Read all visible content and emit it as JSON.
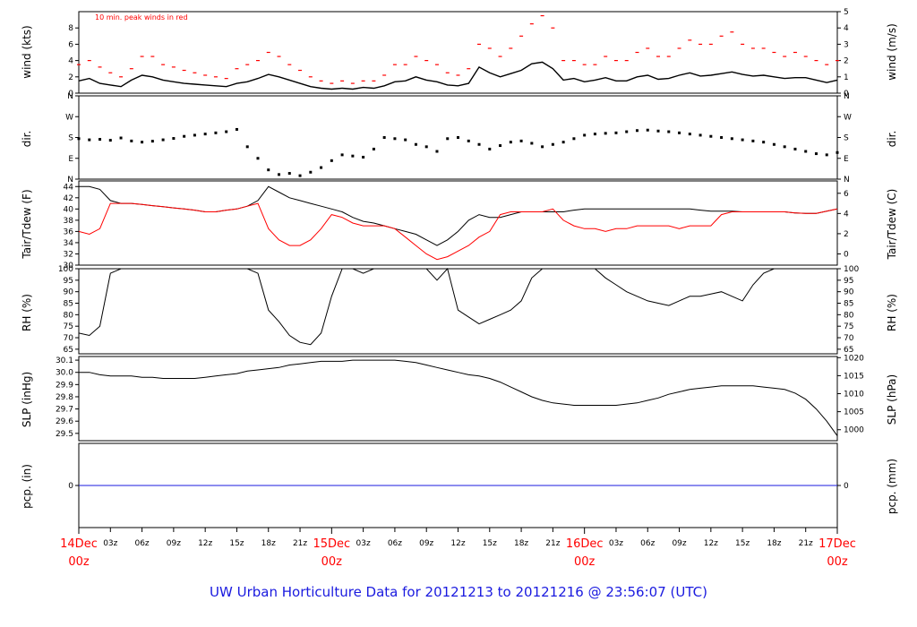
{
  "title": "UW Urban Horticulture Data for 20121213  to  20121216 @ 23:56:07  (UTC)",
  "note": "10 min. peak winds in red",
  "colors": {
    "series": "#000000",
    "peak": "#ff0000",
    "dewpoint": "#ff0000",
    "precip": "#1a1adf",
    "title": "#1a1adf",
    "day_labels": "#ff0000"
  },
  "time_axis": {
    "range_hours": [
      0,
      72
    ],
    "hour_ticks": [
      "03z",
      "06z",
      "09z",
      "12z",
      "15z",
      "18z",
      "21z",
      "03z",
      "06z",
      "09z",
      "12z",
      "15z",
      "18z",
      "21z",
      "03z",
      "06z",
      "09z",
      "12z",
      "15z",
      "18z",
      "21z"
    ],
    "day_labels": [
      {
        "date": "14Dec",
        "time": "00z"
      },
      {
        "date": "15Dec",
        "time": "00z"
      },
      {
        "date": "16Dec",
        "time": "00z"
      },
      {
        "date": "17Dec",
        "time": "00z"
      }
    ]
  },
  "chart_data": [
    {
      "type": "line",
      "panel": "wind",
      "ylabel": "wind (kts)",
      "ylabel_right": "wind (m/s)",
      "ylim": [
        0,
        10
      ],
      "yticks": [
        "0",
        "2",
        "4",
        "6",
        "8"
      ],
      "yticks_right": [
        "0",
        "1",
        "2",
        "3",
        "4",
        "5"
      ],
      "x": [
        0,
        1,
        2,
        3,
        4,
        5,
        6,
        7,
        8,
        9,
        10,
        11,
        12,
        13,
        14,
        15,
        16,
        17,
        18,
        19,
        20,
        21,
        22,
        23,
        24,
        25,
        26,
        27,
        28,
        29,
        30,
        31,
        32,
        33,
        34,
        35,
        36,
        37,
        38,
        39,
        40,
        41,
        42,
        43,
        44,
        45,
        46,
        47,
        48,
        49,
        50,
        51,
        52,
        53,
        54,
        55,
        56,
        57,
        58,
        59,
        60,
        61,
        62,
        63,
        64,
        65,
        66,
        67,
        68,
        69,
        70,
        71,
        72
      ],
      "series": [
        {
          "values": [
            1.5,
            1.8,
            1.2,
            1.0,
            0.8,
            1.6,
            2.2,
            2.0,
            1.6,
            1.4,
            1.2,
            1.1,
            1.0,
            0.9,
            0.8,
            1.2,
            1.4,
            1.8,
            2.3,
            2.0,
            1.6,
            1.2,
            0.8,
            0.6,
            0.5,
            0.6,
            0.5,
            0.7,
            0.6,
            0.9,
            1.4,
            1.5,
            2.0,
            1.6,
            1.4,
            1.0,
            0.9,
            1.2,
            3.2,
            2.5,
            2.0,
            2.4,
            2.8,
            3.6,
            3.8,
            3.0,
            1.6,
            1.8,
            1.4,
            1.6,
            1.9,
            1.5,
            1.5,
            2.0,
            2.2,
            1.7,
            1.8,
            2.2,
            2.5,
            2.1,
            2.2,
            2.4,
            2.6,
            2.3,
            2.1,
            2.2,
            2.0,
            1.8,
            1.9,
            1.9,
            1.6,
            1.3,
            1.6
          ]
        },
        {
          "name": "10 min. peak winds",
          "values": [
            3.5,
            4.0,
            3.2,
            2.5,
            2.0,
            3.0,
            4.5,
            4.5,
            3.5,
            3.2,
            2.8,
            2.5,
            2.2,
            2.0,
            1.8,
            3.0,
            3.5,
            4.0,
            5.0,
            4.5,
            3.5,
            2.8,
            2.0,
            1.5,
            1.2,
            1.5,
            1.2,
            1.5,
            1.5,
            2.2,
            3.5,
            3.5,
            4.5,
            4.0,
            3.5,
            2.5,
            2.2,
            3.0,
            6.0,
            5.5,
            4.5,
            5.5,
            7.0,
            8.5,
            9.5,
            8.0,
            4.0,
            4.0,
            3.5,
            3.5,
            4.5,
            4.0,
            4.0,
            5.0,
            5.5,
            4.5,
            4.5,
            5.5,
            6.5,
            6.0,
            6.0,
            7.0,
            7.5,
            6.0,
            5.5,
            5.5,
            5.0,
            4.5,
            5.0,
            4.5,
            4.0,
            3.5,
            4.0
          ]
        }
      ]
    },
    {
      "type": "scatter",
      "panel": "dir",
      "ylabel": "dir.",
      "ylabel_right": "dir.",
      "ylim": [
        0,
        360
      ],
      "yticks": [
        "N",
        "E",
        "S",
        "W",
        "N"
      ],
      "yticks_right": [
        "N",
        "E",
        "S",
        "W",
        "N"
      ],
      "x": [
        0,
        1,
        2,
        3,
        4,
        5,
        6,
        7,
        8,
        9,
        10,
        11,
        12,
        13,
        14,
        15,
        16,
        17,
        18,
        19,
        20,
        21,
        22,
        23,
        24,
        25,
        26,
        27,
        28,
        29,
        30,
        31,
        32,
        33,
        34,
        35,
        36,
        37,
        38,
        39,
        40,
        41,
        42,
        43,
        44,
        45,
        46,
        47,
        48,
        49,
        50,
        51,
        52,
        53,
        54,
        55,
        56,
        57,
        58,
        59,
        60,
        61,
        62,
        63,
        64,
        65,
        66,
        67,
        68,
        69,
        70,
        71,
        72
      ],
      "series": [
        {
          "values": [
            175,
            170,
            172,
            168,
            178,
            165,
            160,
            164,
            170,
            176,
            185,
            190,
            195,
            200,
            205,
            215,
            140,
            90,
            40,
            20,
            25,
            15,
            30,
            50,
            80,
            105,
            100,
            95,
            130,
            180,
            175,
            170,
            150,
            140,
            120,
            175,
            180,
            165,
            150,
            130,
            145,
            160,
            165,
            155,
            140,
            150,
            160,
            175,
            190,
            195,
            198,
            200,
            205,
            210,
            212,
            208,
            205,
            200,
            195,
            190,
            185,
            180,
            175,
            170,
            165,
            160,
            150,
            140,
            130,
            120,
            110,
            105,
            115
          ]
        }
      ]
    },
    {
      "type": "line",
      "panel": "temp",
      "ylabel": "Tair/Tdew (F)",
      "ylabel_right": "Tair/Tdew (C)",
      "ylim": [
        30,
        45
      ],
      "yticks": [
        "30",
        "32",
        "34",
        "36",
        "38",
        "40",
        "42",
        "44"
      ],
      "yticks_right": [
        "0",
        "2",
        "4",
        "6"
      ],
      "x": [
        0,
        1,
        2,
        3,
        4,
        5,
        6,
        7,
        8,
        9,
        10,
        11,
        12,
        13,
        14,
        15,
        16,
        17,
        18,
        19,
        20,
        21,
        22,
        23,
        24,
        25,
        26,
        27,
        28,
        29,
        30,
        31,
        32,
        33,
        34,
        35,
        36,
        37,
        38,
        39,
        40,
        41,
        42,
        43,
        44,
        45,
        46,
        47,
        48,
        49,
        50,
        51,
        52,
        53,
        54,
        55,
        56,
        57,
        58,
        59,
        60,
        61,
        62,
        63,
        64,
        65,
        66,
        67,
        68,
        69,
        70,
        71,
        72
      ],
      "series": [
        {
          "name": "Tair",
          "values": [
            44,
            44,
            43.5,
            41.5,
            41,
            41,
            40.8,
            40.6,
            40.4,
            40.2,
            40,
            39.8,
            39.5,
            39.5,
            39.8,
            40,
            40.5,
            41.5,
            44,
            43,
            42,
            41.5,
            41,
            40.5,
            40,
            39.5,
            38.5,
            37.8,
            37.5,
            37,
            36.5,
            36,
            35.5,
            34.5,
            33.5,
            34.5,
            36,
            38,
            39,
            38.5,
            38.5,
            39,
            39.5,
            39.5,
            39.5,
            39.5,
            39.5,
            39.8,
            40,
            40,
            40,
            40,
            40,
            40,
            40,
            40,
            40,
            40,
            40,
            39.8,
            39.6,
            39.6,
            39.6,
            39.5,
            39.5,
            39.5,
            39.5,
            39.5,
            39.3,
            39.2,
            39.2,
            39.6,
            40
          ]
        },
        {
          "name": "Tdew",
          "values": [
            36,
            35.5,
            36.5,
            41,
            41,
            41,
            40.8,
            40.6,
            40.4,
            40.2,
            40,
            39.8,
            39.5,
            39.5,
            39.8,
            40,
            40.5,
            41,
            36.5,
            34.5,
            33.5,
            33.5,
            34.5,
            36.5,
            39,
            38.5,
            37.5,
            37,
            37,
            37,
            36.5,
            35,
            33.5,
            32,
            31,
            31.5,
            32.5,
            33.5,
            35,
            36,
            39,
            39.5,
            39.5,
            39.5,
            39.5,
            40,
            38,
            37,
            36.5,
            36.5,
            36,
            36.5,
            36.5,
            37,
            37,
            37,
            37,
            36.5,
            37,
            37,
            37,
            39,
            39.5,
            39.5,
            39.5,
            39.5,
            39.5,
            39.5,
            39.3,
            39.2,
            39.2,
            39.6,
            40
          ]
        }
      ]
    },
    {
      "type": "line",
      "panel": "rh",
      "ylabel": "RH (%)",
      "ylabel_right": "RH (%)",
      "ylim": [
        63,
        100
      ],
      "yticks": [
        "65",
        "70",
        "75",
        "80",
        "85",
        "90",
        "95",
        "100"
      ],
      "yticks_right": [
        "65",
        "70",
        "75",
        "80",
        "85",
        "90",
        "95",
        "100"
      ],
      "x": [
        0,
        1,
        2,
        3,
        4,
        5,
        6,
        7,
        8,
        9,
        10,
        11,
        12,
        13,
        14,
        15,
        16,
        17,
        18,
        19,
        20,
        21,
        22,
        23,
        24,
        25,
        26,
        27,
        28,
        29,
        30,
        31,
        32,
        33,
        34,
        35,
        36,
        37,
        38,
        39,
        40,
        41,
        42,
        43,
        44,
        45,
        46,
        47,
        48,
        49,
        50,
        51,
        52,
        53,
        54,
        55,
        56,
        57,
        58,
        59,
        60,
        61,
        62,
        63,
        64,
        65,
        66,
        67,
        68,
        69,
        70,
        71,
        72
      ],
      "series": [
        {
          "values": [
            72,
            71,
            75,
            98,
            100,
            100,
            100,
            100,
            100,
            100,
            100,
            100,
            100,
            100,
            100,
            100,
            100,
            98,
            82,
            77,
            71,
            68,
            67,
            72,
            88,
            100,
            100,
            98,
            100,
            100,
            100,
            100,
            100,
            100,
            95,
            100,
            82,
            79,
            76,
            78,
            80,
            82,
            86,
            96,
            100,
            100,
            100,
            100,
            100,
            100,
            96,
            93,
            90,
            88,
            86,
            85,
            84,
            86,
            88,
            88,
            89,
            90,
            88,
            86,
            93,
            98,
            100,
            100,
            100,
            100,
            100,
            100,
            100
          ]
        }
      ]
    },
    {
      "type": "line",
      "panel": "slp",
      "ylabel": "SLP (inHg)",
      "ylabel_right": "SLP (hPa)",
      "ylim": [
        29.44,
        30.13
      ],
      "yticks": [
        "29.5",
        "29.6",
        "29.7",
        "29.8",
        "29.9",
        "30.0",
        "30.1"
      ],
      "yticks_right": [
        "1000",
        "1005",
        "1010",
        "1015",
        "1020"
      ],
      "x": [
        0,
        1,
        2,
        3,
        4,
        5,
        6,
        7,
        8,
        9,
        10,
        11,
        12,
        13,
        14,
        15,
        16,
        17,
        18,
        19,
        20,
        21,
        22,
        23,
        24,
        25,
        26,
        27,
        28,
        29,
        30,
        31,
        32,
        33,
        34,
        35,
        36,
        37,
        38,
        39,
        40,
        41,
        42,
        43,
        44,
        45,
        46,
        47,
        48,
        49,
        50,
        51,
        52,
        53,
        54,
        55,
        56,
        57,
        58,
        59,
        60,
        61,
        62,
        63,
        64,
        65,
        66,
        67,
        68,
        69,
        70,
        71,
        72
      ],
      "series": [
        {
          "values": [
            30.0,
            30.0,
            29.98,
            29.97,
            29.97,
            29.97,
            29.96,
            29.96,
            29.95,
            29.95,
            29.95,
            29.95,
            29.96,
            29.97,
            29.98,
            29.99,
            30.01,
            30.02,
            30.03,
            30.04,
            30.06,
            30.07,
            30.08,
            30.09,
            30.09,
            30.09,
            30.1,
            30.1,
            30.1,
            30.1,
            30.1,
            30.09,
            30.08,
            30.06,
            30.04,
            30.02,
            30.0,
            29.98,
            29.97,
            29.95,
            29.92,
            29.88,
            29.84,
            29.8,
            29.77,
            29.75,
            29.74,
            29.73,
            29.73,
            29.73,
            29.73,
            29.73,
            29.74,
            29.75,
            29.77,
            29.79,
            29.82,
            29.84,
            29.86,
            29.87,
            29.88,
            29.89,
            29.89,
            29.89,
            29.89,
            29.88,
            29.87,
            29.86,
            29.83,
            29.78,
            29.7,
            29.6,
            29.48
          ]
        }
      ]
    },
    {
      "type": "line",
      "panel": "pcp",
      "ylabel": "pcp. (in)",
      "ylabel_right": "pcp. (mm)",
      "yticks": [
        "0"
      ],
      "yticks_right": [
        "0"
      ],
      "x": [
        0,
        72
      ],
      "series": [
        {
          "values": [
            0,
            0
          ]
        }
      ]
    }
  ]
}
